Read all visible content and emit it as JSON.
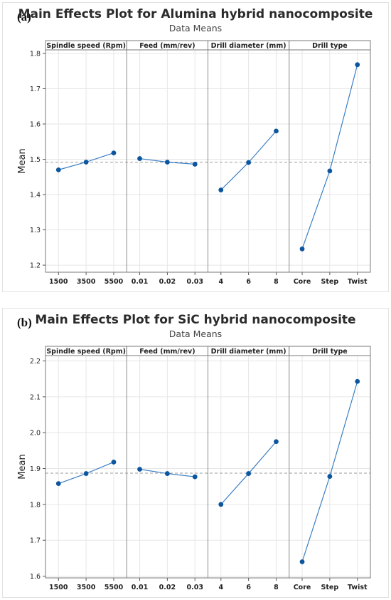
{
  "chart_data": [
    {
      "type": "line",
      "panel_label": "(a)",
      "title": "Main Effects Plot for Alumina hybrid nanocomposite",
      "subtitle": "Data Means",
      "ylabel": "Mean",
      "ylim": [
        1.18,
        1.81
      ],
      "yticks": [
        "1.2",
        "1.3",
        "1.4",
        "1.5",
        "1.6",
        "1.7",
        "1.8"
      ],
      "grid": true,
      "reference_line": 1.492,
      "line_color": "#3b7fc4",
      "marker_color": "#0c56a0",
      "factors": [
        {
          "name": "Spindle speed (Rpm)",
          "categories": [
            "1500",
            "3500",
            "5500"
          ],
          "values": [
            1.47,
            1.492,
            1.518
          ]
        },
        {
          "name": "Feed (mm/rev)",
          "categories": [
            "0.01",
            "0.02",
            "0.03"
          ],
          "values": [
            1.502,
            1.492,
            1.486
          ]
        },
        {
          "name": "Drill diameter (mm)",
          "categories": [
            "4",
            "6",
            "8"
          ],
          "values": [
            1.413,
            1.491,
            1.58
          ]
        },
        {
          "name": "Drill type",
          "categories": [
            "Core",
            "Step",
            "Twist"
          ],
          "values": [
            1.246,
            1.467,
            1.768
          ]
        }
      ]
    },
    {
      "type": "line",
      "panel_label": "(b)",
      "title": "Main Effects Plot for SiC hybrid nanocomposite",
      "subtitle": "Data Means",
      "ylabel": "Mean",
      "ylim": [
        1.595,
        2.215
      ],
      "yticks": [
        "1.6",
        "1.7",
        "1.8",
        "1.9",
        "2.0",
        "2.1",
        "2.2"
      ],
      "grid": true,
      "reference_line": 1.887,
      "line_color": "#3b7fc4",
      "marker_color": "#0c56a0",
      "factors": [
        {
          "name": "Spindle speed (Rpm)",
          "categories": [
            "1500",
            "3500",
            "5500"
          ],
          "values": [
            1.858,
            1.886,
            1.918
          ]
        },
        {
          "name": "Feed (mm/rev)",
          "categories": [
            "0.01",
            "0.02",
            "0.03"
          ],
          "values": [
            1.898,
            1.886,
            1.877
          ]
        },
        {
          "name": "Drill diameter (mm)",
          "categories": [
            "4",
            "6",
            "8"
          ],
          "values": [
            1.8,
            1.886,
            1.975
          ]
        },
        {
          "name": "Drill type",
          "categories": [
            "Core",
            "Step",
            "Twist"
          ],
          "values": [
            1.64,
            1.878,
            2.143
          ]
        }
      ]
    }
  ]
}
